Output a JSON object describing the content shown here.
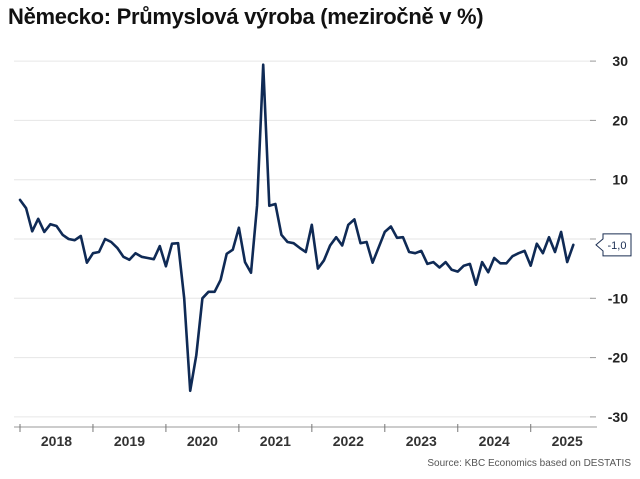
{
  "title": "Německo: Průmyslová výroba (meziročně v %)",
  "source": "Source: KBC Economics based on DESTATIS",
  "colors": {
    "line": "#0f2a55",
    "grid": "#e6e6e6",
    "axis": "#bbbbbb",
    "label_border": "#1a2d52"
  },
  "last_value_label": "-1,0",
  "chart_data": {
    "type": "line",
    "title": "Německo: Průmyslová výroba (meziročně v %)",
    "xlabel": "",
    "ylabel": "",
    "ylim": [
      -30,
      30
    ],
    "yticks": [
      30,
      20,
      10,
      0,
      -10,
      -20,
      -30
    ],
    "ytick_labels": [
      "30",
      "20",
      "10",
      "0",
      "-10",
      "-20",
      "-30"
    ],
    "xtick_labels": [
      "2018",
      "2019",
      "2020",
      "2021",
      "2022",
      "2023",
      "2024",
      "2025"
    ],
    "grid": true,
    "legend": null,
    "frequency": "monthly",
    "start": "2018-01",
    "series": [
      {
        "name": "Průmyslová výroba (meziročně v %)",
        "values": [
          6.6,
          5.2,
          1.3,
          3.4,
          1.2,
          2.5,
          2.2,
          0.7,
          0.0,
          -0.2,
          0.5,
          -4.0,
          -2.4,
          -2.2,
          0.0,
          -0.5,
          -1.5,
          -3.0,
          -3.5,
          -2.4,
          -3.0,
          -3.2,
          -3.4,
          -1.2,
          -4.6,
          -0.8,
          -0.7,
          -10.0,
          -25.6,
          -19.6,
          -10.0,
          -8.9,
          -8.9,
          -6.9,
          -2.5,
          -1.8,
          1.9,
          -3.9,
          -5.7,
          5.7,
          29.4,
          5.6,
          5.9,
          0.7,
          -0.5,
          -0.7,
          -1.5,
          -2.2,
          2.4,
          -5.0,
          -3.6,
          -1.1,
          0.3,
          -1.1,
          2.4,
          3.3,
          -0.7,
          -0.5,
          -4.0,
          -1.4,
          1.2,
          2.1,
          0.2,
          0.3,
          -2.2,
          -2.4,
          -2.0,
          -4.2,
          -3.9,
          -4.8,
          -3.9,
          -5.2,
          -5.5,
          -4.5,
          -4.2,
          -7.7,
          -3.9,
          -5.6,
          -3.2,
          -4.1,
          -4.1,
          -2.9,
          -2.4,
          -2.0,
          -4.5,
          -0.8,
          -2.4,
          0.3,
          -2.2,
          1.2,
          -3.9,
          -1.0
        ]
      }
    ],
    "last_value": -1.0
  }
}
